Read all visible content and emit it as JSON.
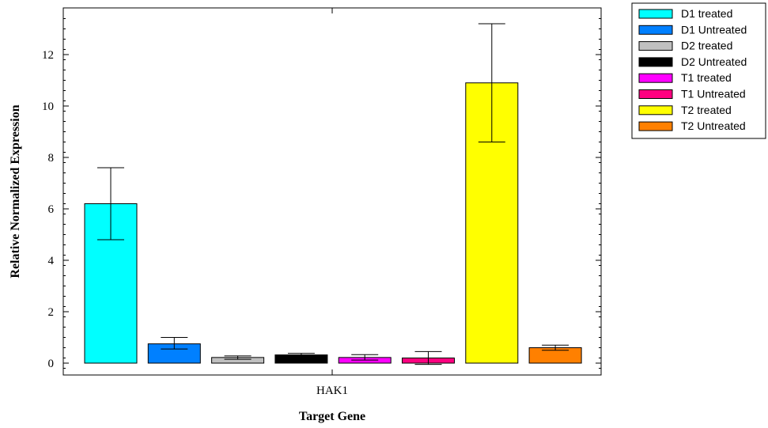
{
  "chart_data": {
    "type": "bar",
    "title": "",
    "xlabel": "Target Gene",
    "ylabel": "Relative Normalized Expression",
    "categories": [
      "HAK1"
    ],
    "ylim": [
      -0.3,
      13.7
    ],
    "yticks": [
      0,
      2,
      4,
      6,
      8,
      10,
      12
    ],
    "grid": false,
    "legend_position": "top-right-outside",
    "series": [
      {
        "name": "D1 treated",
        "value": 6.2,
        "err_low": 4.8,
        "err_high": 7.6,
        "color": "#00ffff"
      },
      {
        "name": "D1 Untreated",
        "value": 0.75,
        "err_low": 0.55,
        "err_high": 1.0,
        "color": "#0080ff"
      },
      {
        "name": "D2 treated",
        "value": 0.22,
        "err_low": 0.15,
        "err_high": 0.28,
        "color": "#c0c0c0"
      },
      {
        "name": "D2 Untreated",
        "value": 0.32,
        "err_low": 0.26,
        "err_high": 0.38,
        "color": "#000000"
      },
      {
        "name": "T1 treated",
        "value": 0.22,
        "err_low": 0.12,
        "err_high": 0.33,
        "color": "#ff00ff"
      },
      {
        "name": "T1 Untreated",
        "value": 0.2,
        "err_low": -0.05,
        "err_high": 0.45,
        "color": "#ff0080"
      },
      {
        "name": "T2 treated",
        "value": 10.9,
        "err_low": 8.6,
        "err_high": 13.2,
        "color": "#ffff00"
      },
      {
        "name": "T2 Untreated",
        "value": 0.6,
        "err_low": 0.5,
        "err_high": 0.7,
        "color": "#ff8000"
      }
    ]
  }
}
